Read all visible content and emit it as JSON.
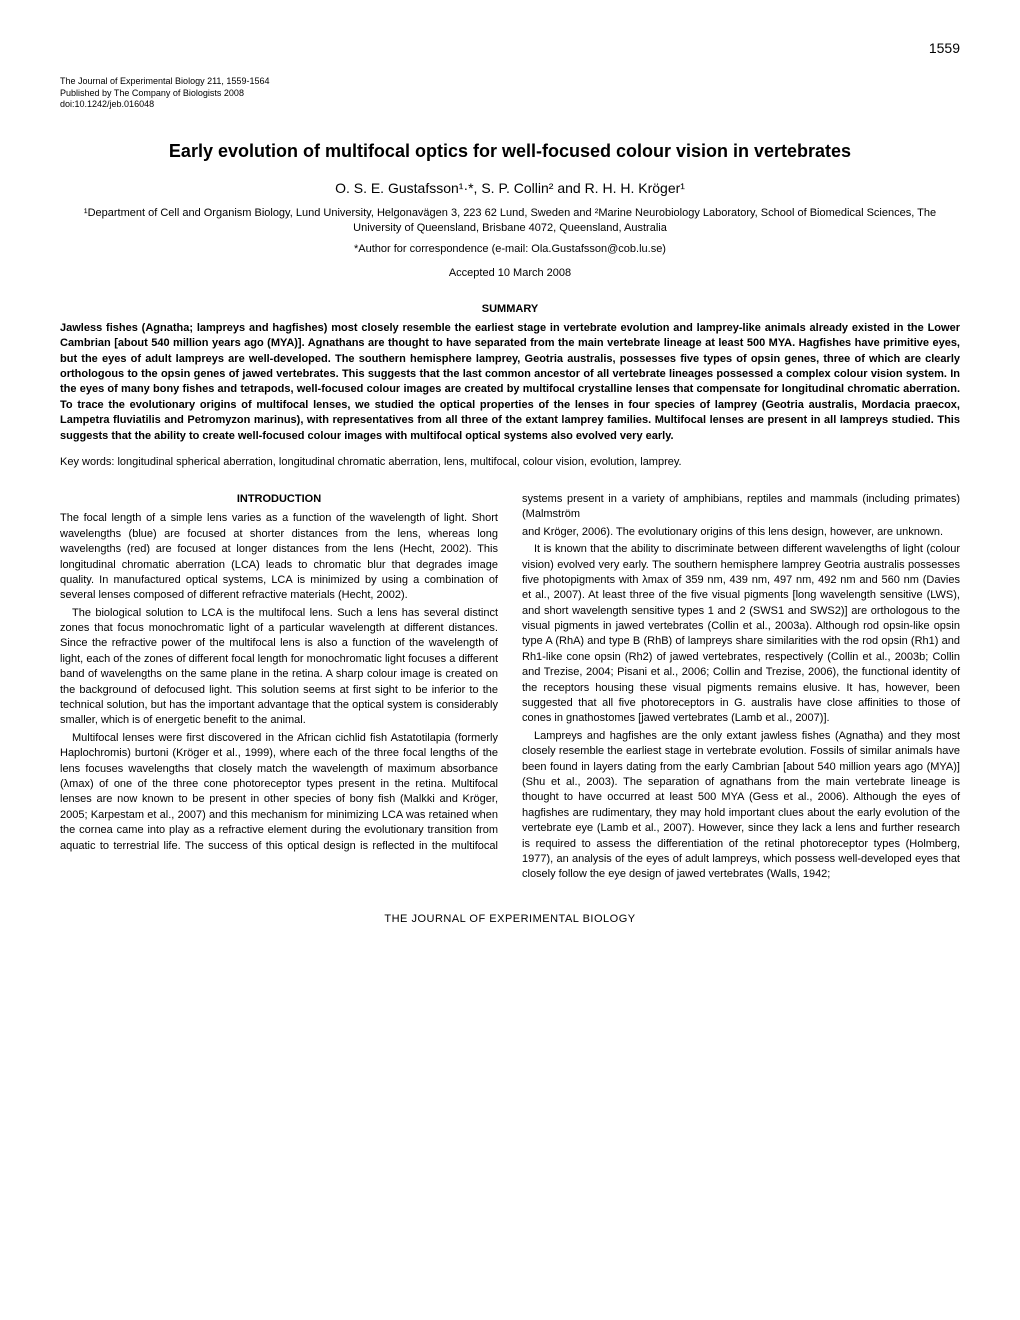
{
  "page_number": "1559",
  "journal": {
    "line1": "The Journal of Experimental Biology 211, 1559-1564",
    "line2": "Published by The Company of Biologists 2008",
    "line3": "doi:10.1242/jeb.016048"
  },
  "title": "Early evolution of multifocal optics for well-focused colour vision in vertebrates",
  "authors": "O. S. E. Gustafsson¹·*, S. P. Collin² and R. H. H. Kröger¹",
  "affiliations": "¹Department of Cell and Organism Biology, Lund University, Helgonavägen 3, 223 62 Lund, Sweden and ²Marine Neurobiology Laboratory, School of Biomedical Sciences, The University of Queensland, Brisbane 4072, Queensland, Australia",
  "correspondence": "*Author for correspondence (e-mail: Ola.Gustafsson@cob.lu.se)",
  "accepted": "Accepted 10 March 2008",
  "summary_heading": "SUMMARY",
  "summary_text": "Jawless fishes (Agnatha; lampreys and hagfishes) most closely resemble the earliest stage in vertebrate evolution and lamprey-like animals already existed in the Lower Cambrian [about 540 million years ago (MYA)]. Agnathans are thought to have separated from the main vertebrate lineage at least 500 MYA. Hagfishes have primitive eyes, but the eyes of adult lampreys are well-developed. The southern hemisphere lamprey, Geotria australis, possesses five types of opsin genes, three of which are clearly orthologous to the opsin genes of jawed vertebrates. This suggests that the last common ancestor of all vertebrate lineages possessed a complex colour vision system. In the eyes of many bony fishes and tetrapods, well-focused colour images are created by multifocal crystalline lenses that compensate for longitudinal chromatic aberration. To trace the evolutionary origins of multifocal lenses, we studied the optical properties of the lenses in four species of lamprey (Geotria australis, Mordacia praecox, Lampetra fluviatilis and Petromyzon marinus), with representatives from all three of the extant lamprey families. Multifocal lenses are present in all lampreys studied. This suggests that the ability to create well-focused colour images with multifocal optical systems also evolved very early.",
  "keywords": "Key words: longitudinal spherical aberration, longitudinal chromatic aberration, lens, multifocal, colour vision, evolution, lamprey.",
  "intro_heading": "INTRODUCTION",
  "body": {
    "p1": "The focal length of a simple lens varies as a function of the wavelength of light. Short wavelengths (blue) are focused at shorter distances from the lens, whereas long wavelengths (red) are focused at longer distances from the lens (Hecht, 2002). This longitudinal chromatic aberration (LCA) leads to chromatic blur that degrades image quality. In manufactured optical systems, LCA is minimized by using a combination of several lenses composed of different refractive materials (Hecht, 2002).",
    "p2": "The biological solution to LCA is the multifocal lens. Such a lens has several distinct zones that focus monochromatic light of a particular wavelength at different distances. Since the refractive power of the multifocal lens is also a function of the wavelength of light, each of the zones of different focal length for monochromatic light focuses a different band of wavelengths on the same plane in the retina. A sharp colour image is created on the background of defocused light. This solution seems at first sight to be inferior to the technical solution, but has the important advantage that the optical system is considerably smaller, which is of energetic benefit to the animal.",
    "p3": "Multifocal lenses were first discovered in the African cichlid fish Astatotilapia (formerly Haplochromis) burtoni (Kröger et al., 1999), where each of the three focal lengths of the lens focuses wavelengths that closely match the wavelength of maximum absorbance (λmax) of one of the three cone photoreceptor types present in the retina. Multifocal lenses are now known to be present in other species of bony fish (Malkki and Kröger, 2005; Karpestam et al., 2007) and this mechanism for minimizing LCA was retained when the cornea came into play as a refractive element during the evolutionary transition from aquatic to terrestrial life. The success of this optical design is reflected in the multifocal systems present in a variety of amphibians, reptiles and mammals (including primates) (Malmström",
    "p4": "and Kröger, 2006). The evolutionary origins of this lens design, however, are unknown.",
    "p5": "It is known that the ability to discriminate between different wavelengths of light (colour vision) evolved very early. The southern hemisphere lamprey Geotria australis possesses five photopigments with λmax of 359 nm, 439 nm, 497 nm, 492 nm and 560 nm (Davies et al., 2007). At least three of the five visual pigments [long wavelength sensitive (LWS), and short wavelength sensitive types 1 and 2 (SWS1 and SWS2)] are orthologous to the visual pigments in jawed vertebrates (Collin et al., 2003a). Although rod opsin-like opsin type A (RhA) and type B (RhB) of lampreys share similarities with the rod opsin (Rh1) and Rh1-like cone opsin (Rh2) of jawed vertebrates, respectively (Collin et al., 2003b; Collin and Trezise, 2004; Pisani et al., 2006; Collin and Trezise, 2006), the functional identity of the receptors housing these visual pigments remains elusive. It has, however, been suggested that all five photoreceptors in G. australis have close affinities to those of cones in gnathostomes [jawed vertebrates (Lamb et al., 2007)].",
    "p6": "Lampreys and hagfishes are the only extant jawless fishes (Agnatha) and they most closely resemble the earliest stage in vertebrate evolution. Fossils of similar animals have been found in layers dating from the early Cambrian [about 540 million years ago (MYA)] (Shu et al., 2003). The separation of agnathans from the main vertebrate lineage is thought to have occurred at least 500 MYA (Gess et al., 2006). Although the eyes of hagfishes are rudimentary, they may hold important clues about the early evolution of the vertebrate eye (Lamb et al., 2007). However, since they lack a lens and further research is required to assess the differentiation of the retinal photoreceptor types (Holmberg, 1977), an analysis of the eyes of adult lampreys, which possess well-developed eyes that closely follow the eye design of jawed vertebrates (Walls, 1942;"
  },
  "footer": "THE JOURNAL OF EXPERIMENTAL BIOLOGY"
}
